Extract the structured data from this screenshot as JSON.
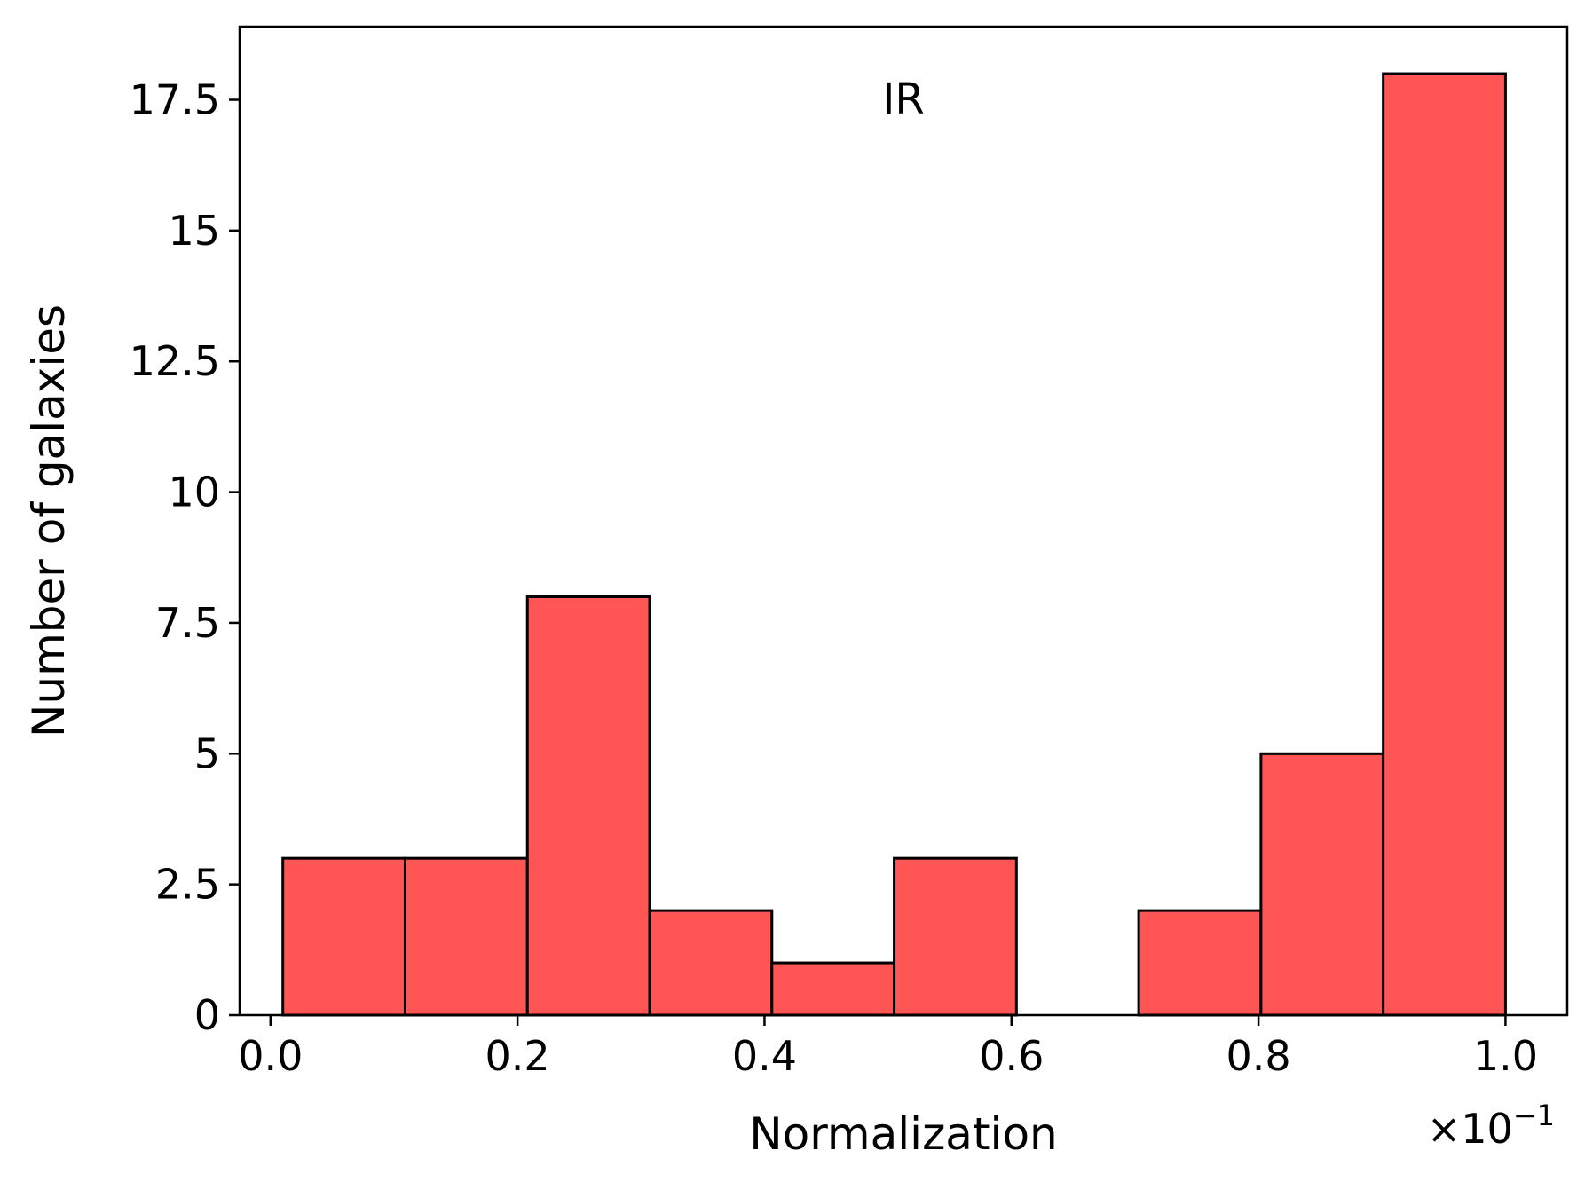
{
  "chart_data": {
    "type": "bar",
    "subtype": "histogram",
    "annotation": "IR",
    "xlabel": "Normalization",
    "ylabel": "Number of galaxies",
    "x_offset_text": "×10",
    "x_offset_exponent": "−1",
    "xlim": [
      -0.025,
      1.05
    ],
    "ylim": [
      0,
      18.9
    ],
    "xticks": [
      0.0,
      0.2,
      0.4,
      0.6,
      0.8,
      1.0
    ],
    "xtick_labels": [
      "0.0",
      "0.2",
      "0.4",
      "0.6",
      "0.8",
      "1.0"
    ],
    "yticks": [
      0,
      2.5,
      5,
      7.5,
      10,
      12.5,
      15,
      17.5
    ],
    "ytick_labels": [
      "0",
      "2.5",
      "5",
      "7.5",
      "10",
      "12.5",
      "15",
      "17.5"
    ],
    "bins": [
      {
        "left": 0.01,
        "right": 0.109,
        "count": 3
      },
      {
        "left": 0.109,
        "right": 0.208,
        "count": 3
      },
      {
        "left": 0.208,
        "right": 0.307,
        "count": 8
      },
      {
        "left": 0.307,
        "right": 0.406,
        "count": 2
      },
      {
        "left": 0.406,
        "right": 0.505,
        "count": 1
      },
      {
        "left": 0.505,
        "right": 0.604,
        "count": 3
      },
      {
        "left": 0.604,
        "right": 0.703,
        "count": 0
      },
      {
        "left": 0.703,
        "right": 0.802,
        "count": 2
      },
      {
        "left": 0.802,
        "right": 0.901,
        "count": 5
      },
      {
        "left": 0.901,
        "right": 1.0,
        "count": 18
      }
    ],
    "bar_color": "#ff5555",
    "edge_color": "#000000",
    "grid": false
  }
}
